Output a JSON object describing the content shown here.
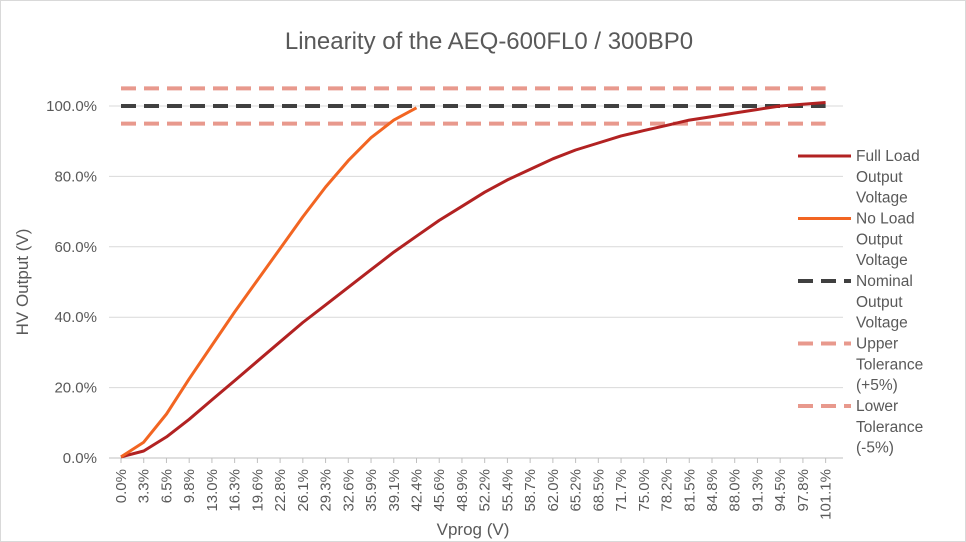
{
  "chart_data": {
    "type": "line",
    "title": "Linearity of the AEQ-600FL0 / 300BP0",
    "xlabel": "Vprog (V)",
    "ylabel": "HV Output (V)",
    "categories": [
      "0.0%",
      "3.3%",
      "6.5%",
      "9.8%",
      "13.0%",
      "16.3%",
      "19.6%",
      "22.8%",
      "26.1%",
      "29.3%",
      "32.6%",
      "35.9%",
      "39.1%",
      "42.4%",
      "45.6%",
      "48.9%",
      "52.2%",
      "55.4%",
      "58.7%",
      "62.0%",
      "65.2%",
      "68.5%",
      "71.7%",
      "75.0%",
      "78.2%",
      "81.5%",
      "84.8%",
      "88.0%",
      "91.3%",
      "94.5%",
      "97.8%",
      "101.1%"
    ],
    "yticks": [
      "0.0%",
      "20.0%",
      "40.0%",
      "60.0%",
      "80.0%",
      "100.0%"
    ],
    "ylim": [
      0,
      100
    ],
    "grid": "horizontal",
    "legend_position": "right",
    "series": [
      {
        "name": "Full Load Output Voltage",
        "color": "#b22222",
        "style": "solid",
        "values": [
          0.3,
          2,
          6,
          11,
          16.5,
          22,
          27.5,
          33,
          38.5,
          43.5,
          48.5,
          53.5,
          58.5,
          63,
          67.5,
          71.5,
          75.5,
          79,
          82,
          85,
          87.5,
          89.5,
          91.5,
          93,
          94.5,
          96,
          97,
          98,
          99,
          100,
          100.5,
          101
        ]
      },
      {
        "name": "No Load Output Voltage",
        "color": "#f26522",
        "style": "solid",
        "values": [
          0.3,
          4.5,
          12.5,
          22.5,
          32,
          41.5,
          50.5,
          59.5,
          68.5,
          77,
          84.5,
          91,
          96,
          99.5,
          null,
          null,
          null,
          null,
          null,
          null,
          null,
          null,
          null,
          null,
          null,
          null,
          null,
          null,
          null,
          null,
          null,
          null
        ]
      },
      {
        "name": "Nominal Output Voltage",
        "color": "#404040",
        "style": "dashed",
        "values": [
          100,
          100,
          100,
          100,
          100,
          100,
          100,
          100,
          100,
          100,
          100,
          100,
          100,
          100,
          100,
          100,
          100,
          100,
          100,
          100,
          100,
          100,
          100,
          100,
          100,
          100,
          100,
          100,
          100,
          100,
          100,
          100
        ]
      },
      {
        "name": "Upper Tolerance (+5%)",
        "color": "#e8998d",
        "style": "dashed",
        "values": [
          105,
          105,
          105,
          105,
          105,
          105,
          105,
          105,
          105,
          105,
          105,
          105,
          105,
          105,
          105,
          105,
          105,
          105,
          105,
          105,
          105,
          105,
          105,
          105,
          105,
          105,
          105,
          105,
          105,
          105,
          105,
          105
        ]
      },
      {
        "name": "Lower Tolerance (-5%)",
        "color": "#e8998d",
        "style": "dashed",
        "values": [
          95,
          95,
          95,
          95,
          95,
          95,
          95,
          95,
          95,
          95,
          95,
          95,
          95,
          95,
          95,
          95,
          95,
          95,
          95,
          95,
          95,
          95,
          95,
          95,
          95,
          95,
          95,
          95,
          95,
          95,
          95,
          95
        ]
      }
    ],
    "legend_lines": [
      [
        "Full Load",
        "Output",
        "Voltage"
      ],
      [
        "No Load",
        "Output",
        "Voltage"
      ],
      [
        "Nominal",
        "Output",
        "Voltage"
      ],
      [
        "Upper",
        "Tolerance",
        "(+5%)"
      ],
      [
        "Lower",
        "Tolerance",
        "(-5%)"
      ]
    ]
  }
}
